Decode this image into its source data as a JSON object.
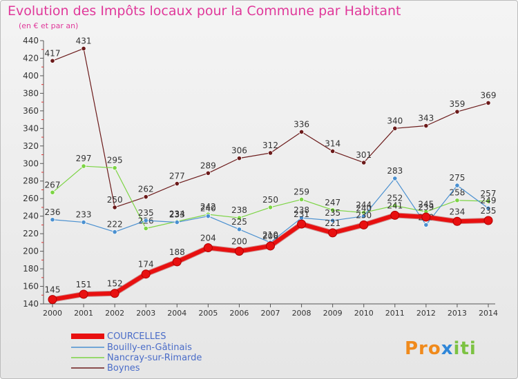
{
  "title": "Evolution des Impôts locaux pour la Commune par Habitant",
  "subtitle": "(en € et par an)",
  "logo": {
    "part1": "Pro",
    "part2": "x",
    "part3": "iti"
  },
  "chart_data": {
    "type": "line",
    "x": [
      "2000",
      "2001",
      "2002",
      "2003",
      "2004",
      "2005",
      "2006",
      "2007",
      "2008",
      "2009",
      "2010",
      "2011",
      "2012",
      "2013",
      "2014"
    ],
    "ylim": [
      140,
      440
    ],
    "yticks": [
      140,
      160,
      180,
      200,
      220,
      240,
      260,
      280,
      300,
      320,
      340,
      360,
      380,
      400,
      420,
      440
    ],
    "grid": false,
    "legend_position": "bottom-left",
    "series": [
      {
        "name": "COURCELLES",
        "color": "#e81010",
        "values": [
          145,
          151,
          152,
          174,
          188,
          204,
          200,
          206,
          231,
          221,
          230,
          241,
          239,
          234,
          235
        ]
      },
      {
        "name": "Bouilly-en-Gâtinais",
        "color": "#4a90d0",
        "values": [
          236,
          233,
          222,
          235,
          233,
          240,
          225,
          210,
          238,
          235,
          240,
          283,
          230,
          275,
          249
        ]
      },
      {
        "name": "Nancray-sur-Rimarde",
        "color": "#7cd444",
        "values": [
          267,
          297,
          295,
          226,
          234,
          242,
          238,
          250,
          259,
          247,
          244,
          252,
          245,
          258,
          257
        ]
      },
      {
        "name": "Boynes",
        "color": "#6b1a1a",
        "values": [
          417,
          431,
          250,
          262,
          277,
          289,
          306,
          312,
          336,
          314,
          301,
          340,
          343,
          359,
          369
        ]
      }
    ]
  }
}
